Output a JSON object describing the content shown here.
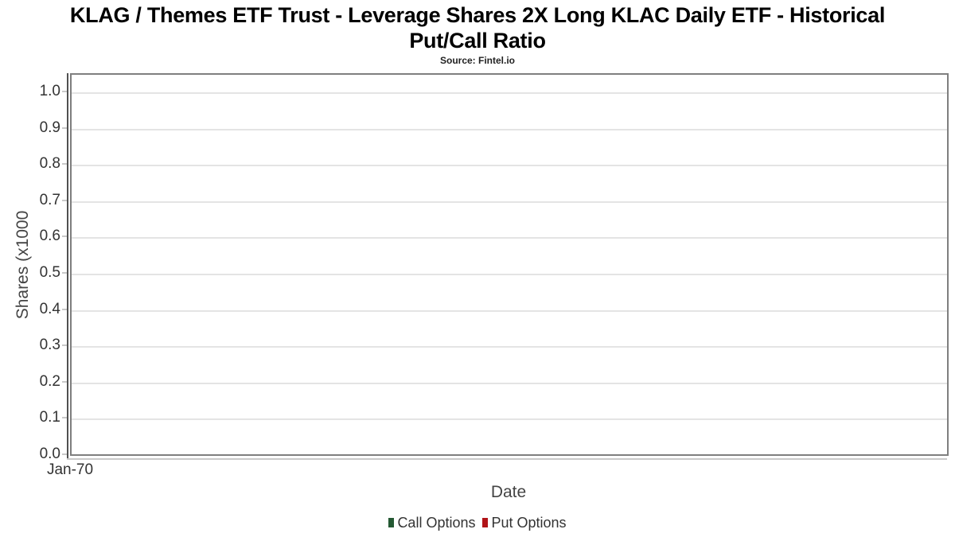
{
  "header": {
    "title_line1": "KLAG / Themes ETF Trust - Leverage Shares 2X Long KLAC Daily ETF - Historical",
    "title_line2": "Put/Call Ratio",
    "subtitle": "Source: Fintel.io"
  },
  "chart_data": {
    "type": "bar",
    "title": "KLAG / Themes ETF Trust - Leverage Shares 2X Long KLAC Daily ETF - Historical Put/Call Ratio",
    "subtitle": "Source: Fintel.io",
    "xlabel": "Date",
    "ylabel": "Shares (x1000",
    "ylim": [
      0.0,
      1.0
    ],
    "y_ticks": [
      1.0,
      0.9,
      0.8,
      0.7,
      0.6,
      0.5,
      0.4,
      0.3,
      0.2,
      0.1,
      0.0
    ],
    "y_tick_labels": [
      "1.0",
      "0.9",
      "0.8",
      "0.7",
      "0.6",
      "0.5",
      "0.4",
      "0.3",
      "0.2",
      "0.1",
      "0.0"
    ],
    "x_tick_labels": [
      "Jan-70"
    ],
    "grid": "horizontal",
    "legend_position": "bottom-center",
    "series": [
      {
        "name": "Call Options",
        "color": "#245933",
        "values": []
      },
      {
        "name": "Put Options",
        "color": "#b11418",
        "values": []
      }
    ]
  },
  "colors": {
    "gridline": "#e4e4e4",
    "plot_border": "#7f7f7f",
    "y_axis_line": "#515151",
    "x_axis_line": "#c9c9c9"
  }
}
